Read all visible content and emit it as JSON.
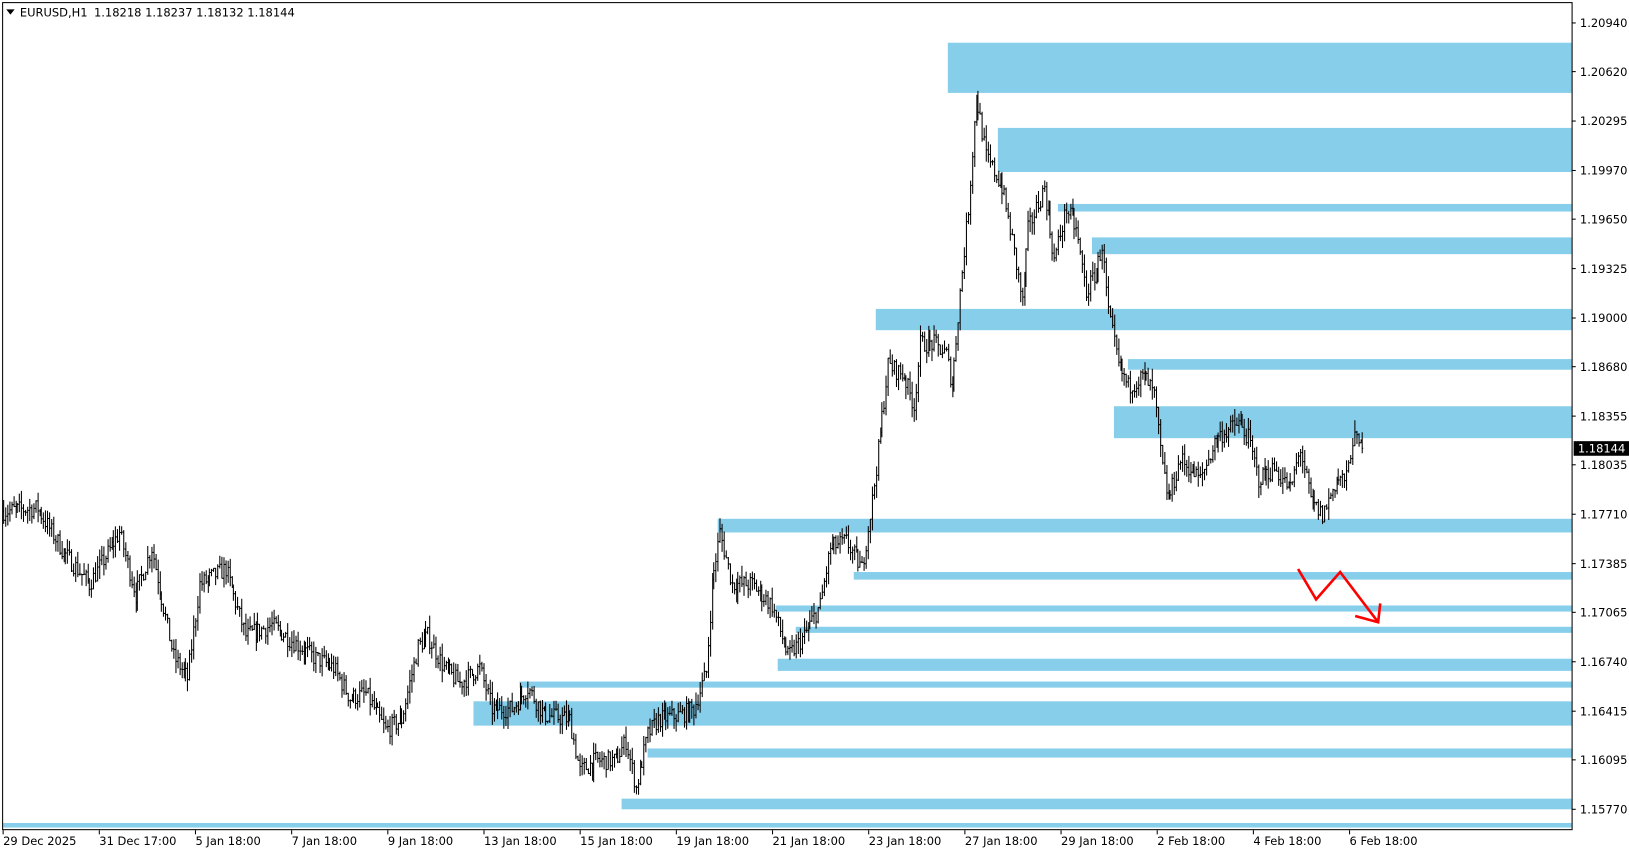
{
  "header": {
    "symbol": "EURUSD,H1",
    "ohlc": "1.18218 1.18237 1.18132 1.18144",
    "menu_icon": "triangle-down-icon"
  },
  "current_price_label": "1.18144",
  "colors": {
    "zone": "#87CEEB",
    "bar": "#000000",
    "arrow": "#FF0000",
    "price_label_bg": "#000000"
  },
  "chart_data": {
    "type": "ohlc",
    "title": "EURUSD,H1",
    "timeframe": "H1",
    "ylim": [
      1.156,
      1.2105
    ],
    "grid": false,
    "y_ticks": [
      "1.20940",
      "1.20620",
      "1.20295",
      "1.19970",
      "1.19650",
      "1.19325",
      "1.19000",
      "1.18680",
      "1.18355",
      "1.18035",
      "1.17710",
      "1.17385",
      "1.17065",
      "1.16740",
      "1.16415",
      "1.16095",
      "1.15770"
    ],
    "x_ticks": [
      "29 Dec 2025",
      "31 Dec 17:00",
      "5 Jan 18:00",
      "7 Jan 18:00",
      "9 Jan 18:00",
      "13 Jan 18:00",
      "15 Jan 18:00",
      "19 Jan 18:00",
      "21 Jan 18:00",
      "23 Jan 18:00",
      "27 Jan 18:00",
      "29 Jan 18:00",
      "2 Feb 18:00",
      "4 Feb 18:00",
      "6 Feb 18:00"
    ],
    "last": {
      "open": 1.18218,
      "high": 1.18237,
      "low": 1.18132,
      "close": 1.18144
    },
    "price_path_bar_price": [
      [
        0,
        1.1773
      ],
      [
        17,
        1.1775
      ],
      [
        30,
        1.1746
      ],
      [
        43,
        1.1725
      ],
      [
        58,
        1.1759
      ],
      [
        66,
        1.1718
      ],
      [
        74,
        1.1749
      ],
      [
        85,
        1.1677
      ],
      [
        92,
        1.1663
      ],
      [
        98,
        1.1725
      ],
      [
        111,
        1.1735
      ],
      [
        121,
        1.1691
      ],
      [
        134,
        1.1698
      ],
      [
        145,
        1.1687
      ],
      [
        155,
        1.1677
      ],
      [
        165,
        1.167
      ],
      [
        173,
        1.165
      ],
      [
        181,
        1.1653
      ],
      [
        191,
        1.1629
      ],
      [
        199,
        1.1636
      ],
      [
        207,
        1.1684
      ],
      [
        212,
        1.1691
      ],
      [
        220,
        1.167
      ],
      [
        228,
        1.166
      ],
      [
        238,
        1.167
      ],
      [
        244,
        1.1643
      ],
      [
        254,
        1.1643
      ],
      [
        262,
        1.1657
      ],
      [
        270,
        1.1639
      ],
      [
        283,
        1.1636
      ],
      [
        288,
        1.1602
      ],
      [
        296,
        1.1609
      ],
      [
        306,
        1.1609
      ],
      [
        311,
        1.1622
      ],
      [
        316,
        1.1591
      ],
      [
        322,
        1.1626
      ],
      [
        327,
        1.1636
      ],
      [
        338,
        1.1639
      ],
      [
        345,
        1.1643
      ],
      [
        351,
        1.1667
      ],
      [
        354,
        1.1725
      ],
      [
        358,
        1.1759
      ],
      [
        364,
        1.1725
      ],
      [
        374,
        1.1725
      ],
      [
        384,
        1.1711
      ],
      [
        392,
        1.1677
      ],
      [
        400,
        1.1691
      ],
      [
        408,
        1.1711
      ],
      [
        413,
        1.1749
      ],
      [
        421,
        1.1753
      ],
      [
        429,
        1.1735
      ],
      [
        434,
        1.178
      ],
      [
        439,
        1.1835
      ],
      [
        442,
        1.1869
      ],
      [
        450,
        1.1862
      ],
      [
        455,
        1.1842
      ],
      [
        458,
        1.1883
      ],
      [
        465,
        1.1883
      ],
      [
        471,
        1.1876
      ],
      [
        474,
        1.1855
      ],
      [
        478,
        1.1917
      ],
      [
        482,
        1.1972
      ],
      [
        486,
        1.2047
      ],
      [
        491,
        1.2006
      ],
      [
        499,
        1.1986
      ],
      [
        504,
        1.1951
      ],
      [
        509,
        1.191
      ],
      [
        512,
        1.1958
      ],
      [
        520,
        1.1986
      ],
      [
        525,
        1.1938
      ],
      [
        531,
        1.1972
      ],
      [
        536,
        1.1958
      ],
      [
        541,
        1.1917
      ],
      [
        546,
        1.1931
      ],
      [
        549,
        1.1948
      ],
      [
        552,
        1.1903
      ],
      [
        557,
        1.1869
      ],
      [
        562,
        1.1855
      ],
      [
        570,
        1.1862
      ],
      [
        575,
        1.1849
      ],
      [
        579,
        1.1801
      ],
      [
        582,
        1.178
      ],
      [
        588,
        1.1807
      ],
      [
        598,
        1.1794
      ],
      [
        606,
        1.1821
      ],
      [
        617,
        1.1831
      ],
      [
        622,
        1.1821
      ],
      [
        627,
        1.1794
      ],
      [
        635,
        1.1801
      ],
      [
        643,
        1.1787
      ],
      [
        648,
        1.1814
      ],
      [
        653,
        1.178
      ],
      [
        659,
        1.177
      ],
      [
        666,
        1.1794
      ],
      [
        671,
        1.1794
      ],
      [
        674,
        1.1821
      ],
      [
        679,
        1.18144
      ]
    ],
    "zones": [
      {
        "start_bar": 472,
        "top": 1.2081,
        "bottom": 1.2048
      },
      {
        "start_bar": 497,
        "top": 1.2025,
        "bottom": 1.1996
      },
      {
        "start_bar": 527,
        "top": 1.1975,
        "bottom": 1.197
      },
      {
        "start_bar": 544,
        "top": 1.1953,
        "bottom": 1.1942
      },
      {
        "start_bar": 436,
        "top": 1.1906,
        "bottom": 1.1892
      },
      {
        "start_bar": 562,
        "top": 1.1873,
        "bottom": 1.1866
      },
      {
        "start_bar": 555,
        "top": 1.1842,
        "bottom": 1.1821
      },
      {
        "start_bar": 357,
        "top": 1.1768,
        "bottom": 1.1759
      },
      {
        "start_bar": 425,
        "top": 1.1733,
        "bottom": 1.1728
      },
      {
        "start_bar": 386,
        "top": 1.1711,
        "bottom": 1.1707
      },
      {
        "start_bar": 396,
        "top": 1.1697,
        "bottom": 1.1693
      },
      {
        "start_bar": 387,
        "top": 1.1676,
        "bottom": 1.1668
      },
      {
        "start_bar": 258,
        "top": 1.1661,
        "bottom": 1.1657
      },
      {
        "start_bar": 235,
        "top": 1.1648,
        "bottom": 1.1632
      },
      {
        "start_bar": 322,
        "top": 1.1617,
        "bottom": 1.1611
      },
      {
        "start_bar": 309,
        "top": 1.1584,
        "bottom": 1.1577
      },
      {
        "start_bar": 0,
        "top": 1.1568,
        "bottom": 1.1565
      }
    ],
    "arrow_annotation": [
      [
        647,
        1.1735
      ],
      [
        656,
        1.1715
      ],
      [
        668,
        1.1733
      ],
      [
        687,
        1.17
      ]
    ]
  }
}
